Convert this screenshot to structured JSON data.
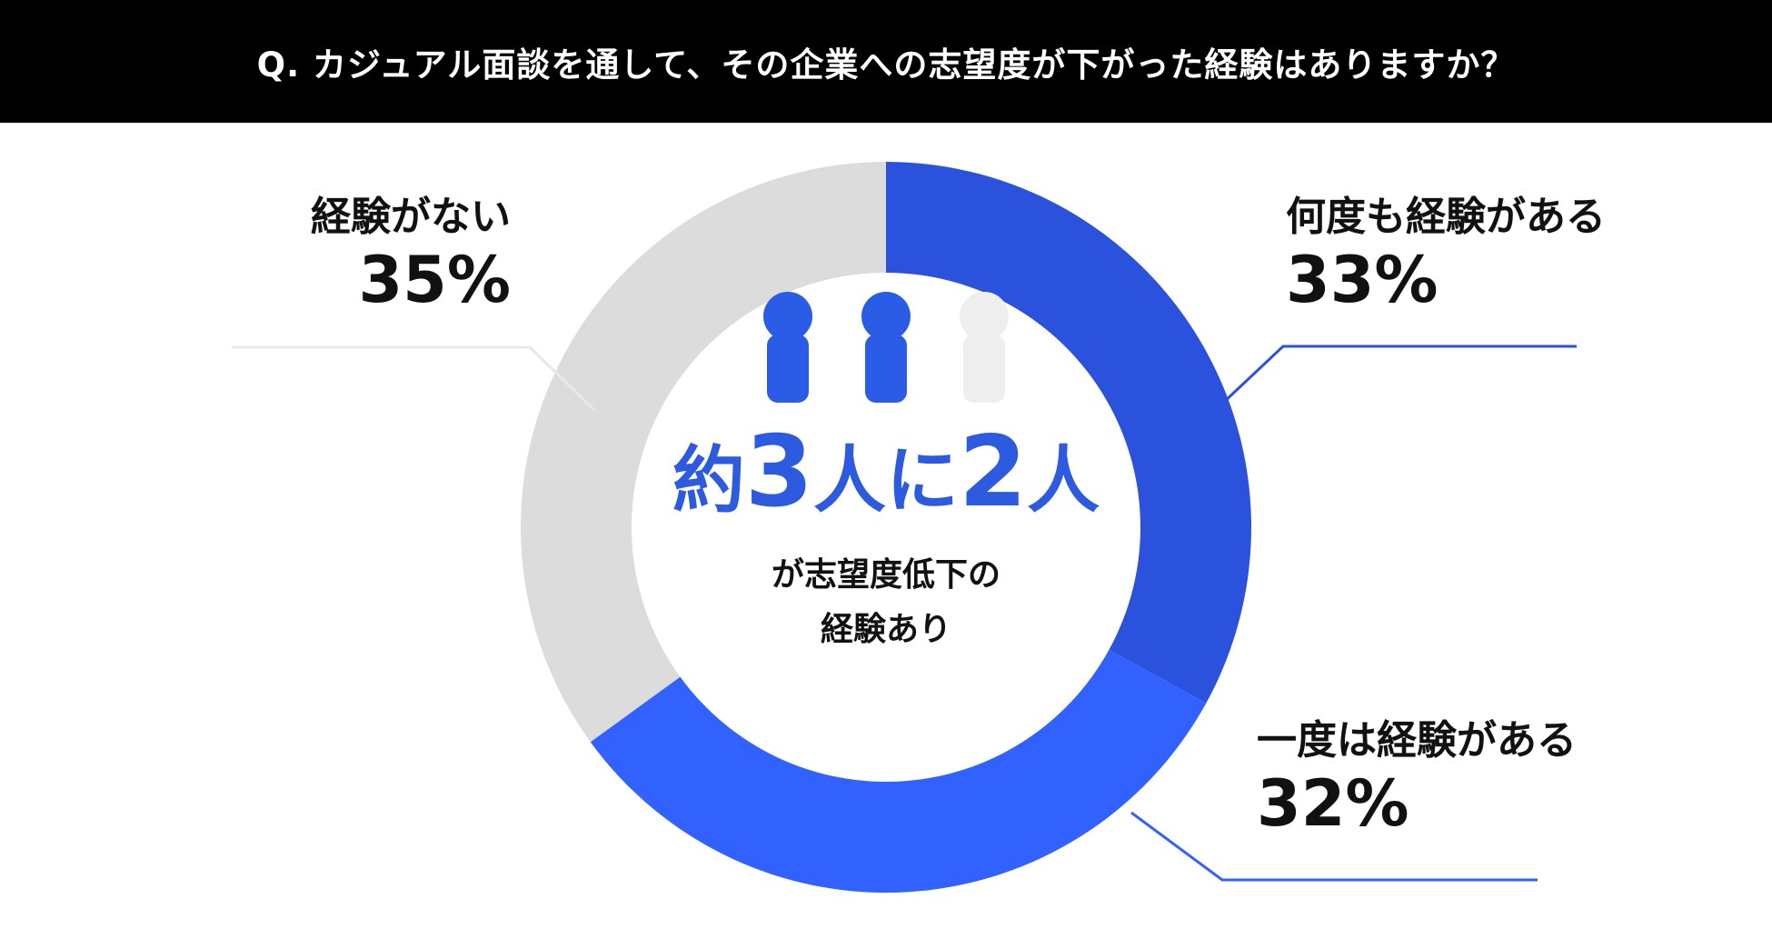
{
  "header": {
    "question": "Q. カジュアル面談を通して、その企業への志望度が下がった経験はありますか？"
  },
  "colors": {
    "many_times": "#2b52dd",
    "once": "#3162ff",
    "none": "#dcdcdc",
    "person_filled": "#2b5ce6",
    "person_empty": "#eeeeee"
  },
  "chart_data": {
    "type": "pie",
    "title": "Q. カジュアル面談を通して、その企業への志望度が下がった経験はありますか？",
    "categories": [
      "何度も経験がある",
      "一度は経験がある",
      "経験がない"
    ],
    "values": [
      33,
      32,
      35
    ],
    "labels": [
      "33%",
      "32%",
      "35%"
    ]
  },
  "center": {
    "prefix": "約",
    "num1": "3",
    "mid": "人に",
    "num2": "2",
    "suffix": "人",
    "line1": "が志望度低下の",
    "line2": "経験あり"
  },
  "people": {
    "total": 3,
    "filled": 2
  }
}
